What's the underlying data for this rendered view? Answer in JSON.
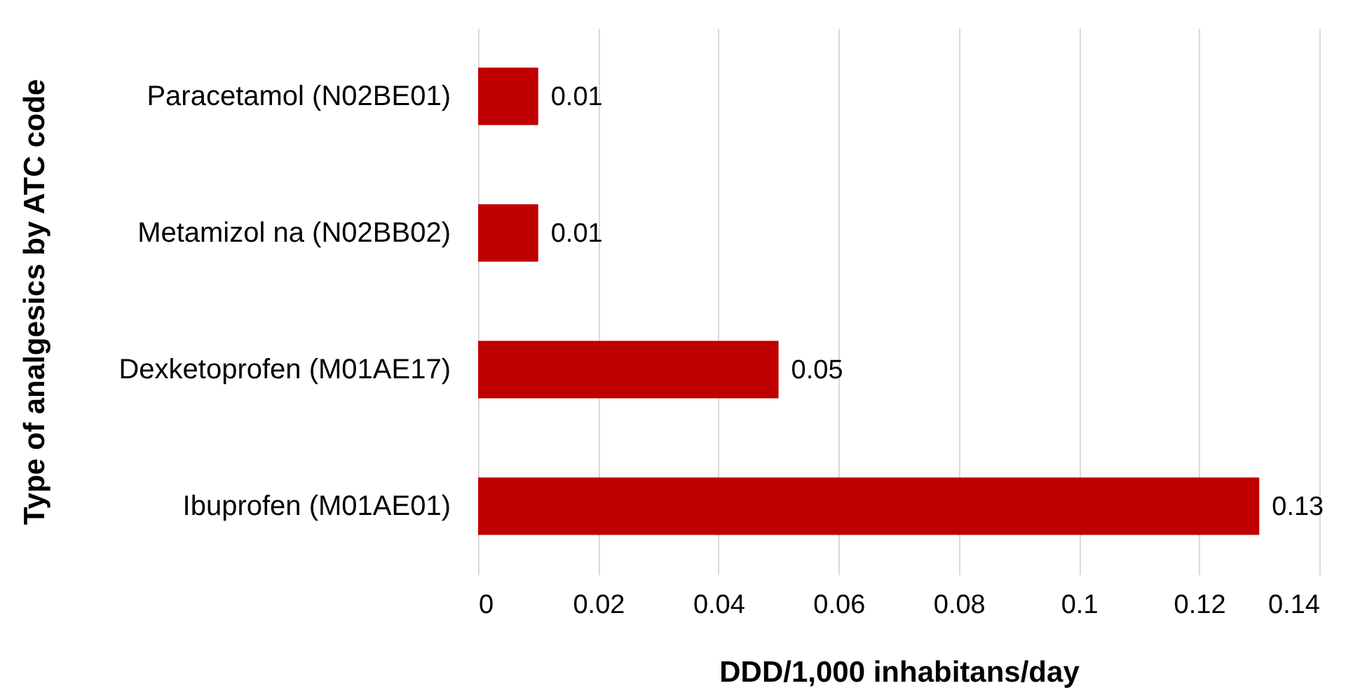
{
  "chart_data": {
    "type": "bar",
    "orientation": "horizontal",
    "xlabel": "DDD/1,000 inhabitans/day",
    "ylabel": "Type of analgesics by ATC code",
    "categories": [
      "Paracetamol (N02BE01)",
      "Metamizol na (N02BB02)",
      "Dexketoprofen (M01AE17)",
      "Ibuprofen (M01AE01)"
    ],
    "values": [
      0.01,
      0.01,
      0.05,
      0.13
    ],
    "color": "#c00000",
    "xlim": [
      0,
      0.14
    ],
    "xticks": [
      0,
      0.02,
      0.04,
      0.06,
      0.08,
      0.1,
      0.12,
      0.14
    ],
    "grid": "x",
    "data_labels": true
  }
}
